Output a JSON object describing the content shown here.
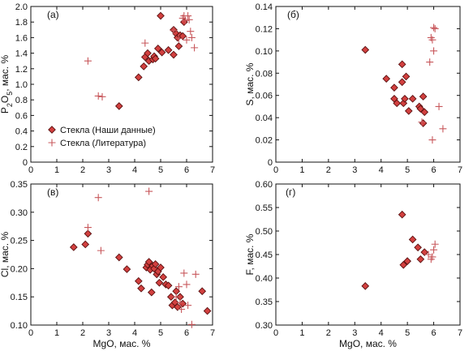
{
  "colors": {
    "diamond_fill": "#d2403f",
    "diamond_stroke": "#5a1010",
    "cross": "#c8585c",
    "axis": "#111111"
  },
  "legend": {
    "ours": "Стекла (Наши данные)",
    "literature": "Стекла (Литература)"
  },
  "chart_data": [
    {
      "type": "scatter",
      "panel_label": "(а)",
      "ylabel": "P2O5, мас. %",
      "xlabel": "",
      "xlim": [
        0,
        7
      ],
      "ylim": [
        0,
        2.0
      ],
      "xticks": [
        "0",
        "1",
        "2",
        "3",
        "4",
        "5",
        "6",
        "7"
      ],
      "yticks": [
        "0",
        "0.2",
        "0.4",
        "0.6",
        "0.8",
        "1.0",
        "1.2",
        "1.4",
        "1.6",
        "1.8",
        "2.0"
      ],
      "legend_position": "lower-left",
      "series": [
        {
          "name": "Стекла (Наши данные)",
          "marker": "diamond",
          "points": [
            [
              3.4,
              0.72
            ],
            [
              4.15,
              1.09
            ],
            [
              4.35,
              1.23
            ],
            [
              4.4,
              1.35
            ],
            [
              4.5,
              1.4
            ],
            [
              4.55,
              1.3
            ],
            [
              4.7,
              1.32
            ],
            [
              4.75,
              1.36
            ],
            [
              4.8,
              1.33
            ],
            [
              4.9,
              1.46
            ],
            [
              5.0,
              1.88
            ],
            [
              5.05,
              1.41
            ],
            [
              5.3,
              1.44
            ],
            [
              5.5,
              1.38
            ],
            [
              5.5,
              1.7
            ],
            [
              5.6,
              1.65
            ],
            [
              5.65,
              1.6
            ],
            [
              5.7,
              1.49
            ],
            [
              5.75,
              1.63
            ],
            [
              5.85,
              1.62
            ],
            [
              5.9,
              1.8
            ]
          ]
        },
        {
          "name": "Стекла (Литература)",
          "marker": "cross",
          "points": [
            [
              2.2,
              1.3
            ],
            [
              2.6,
              0.85
            ],
            [
              2.75,
              0.84
            ],
            [
              4.4,
              1.53
            ],
            [
              5.5,
              1.69
            ],
            [
              5.7,
              1.59
            ],
            [
              5.85,
              1.85
            ],
            [
              5.9,
              1.88
            ],
            [
              5.95,
              1.82
            ],
            [
              6.0,
              1.57
            ],
            [
              6.05,
              1.88
            ],
            [
              6.1,
              1.83
            ],
            [
              6.15,
              1.68
            ],
            [
              6.2,
              1.6
            ],
            [
              6.3,
              1.47
            ]
          ]
        }
      ]
    },
    {
      "type": "scatter",
      "panel_label": "(б)",
      "ylabel": "S, мас. %",
      "xlabel": "",
      "xlim": [
        0,
        7
      ],
      "ylim": [
        0,
        0.14
      ],
      "xticks": [
        "0",
        "1",
        "2",
        "3",
        "4",
        "5",
        "6",
        "7"
      ],
      "yticks": [
        "0",
        "0.02",
        "0.04",
        "0.06",
        "0.08",
        "0.10",
        "0.12",
        "0.14"
      ],
      "series": [
        {
          "name": "Стекла (Наши данные)",
          "marker": "diamond",
          "points": [
            [
              3.4,
              0.101
            ],
            [
              4.2,
              0.075
            ],
            [
              4.5,
              0.067
            ],
            [
              4.5,
              0.057
            ],
            [
              4.6,
              0.053
            ],
            [
              4.8,
              0.088
            ],
            [
              4.8,
              0.072
            ],
            [
              4.85,
              0.053
            ],
            [
              4.9,
              0.057
            ],
            [
              4.95,
              0.077
            ],
            [
              5.05,
              0.046
            ],
            [
              5.2,
              0.057
            ],
            [
              5.45,
              0.05
            ],
            [
              5.5,
              0.048
            ],
            [
              5.6,
              0.035
            ],
            [
              5.6,
              0.059
            ],
            [
              5.65,
              0.045
            ]
          ]
        },
        {
          "name": "Стекла (Литература)",
          "marker": "cross",
          "points": [
            [
              5.55,
              0.036
            ],
            [
              5.85,
              0.09
            ],
            [
              5.9,
              0.112
            ],
            [
              5.95,
              0.11
            ],
            [
              5.95,
              0.02
            ],
            [
              6.0,
              0.1
            ],
            [
              6.0,
              0.121
            ],
            [
              6.05,
              0.12
            ],
            [
              6.2,
              0.05
            ],
            [
              6.35,
              0.03
            ]
          ]
        }
      ]
    },
    {
      "type": "scatter",
      "panel_label": "(в)",
      "ylabel": "Cl, мас. %",
      "xlabel": "MgO, мас. %",
      "xlim": [
        0,
        7
      ],
      "ylim": [
        0.1,
        0.35
      ],
      "xticks": [
        "0",
        "1",
        "2",
        "3",
        "4",
        "5",
        "6",
        "7"
      ],
      "yticks": [
        "0.10",
        "0.15",
        "0.20",
        "0.25",
        "0.30",
        "0.35"
      ],
      "series": [
        {
          "name": "Стекла (Наши данные)",
          "marker": "diamond",
          "points": [
            [
              1.65,
              0.238
            ],
            [
              2.1,
              0.243
            ],
            [
              2.2,
              0.262
            ],
            [
              3.4,
              0.22
            ],
            [
              3.7,
              0.199
            ],
            [
              4.15,
              0.178
            ],
            [
              4.25,
              0.165
            ],
            [
              4.45,
              0.202
            ],
            [
              4.5,
              0.207
            ],
            [
              4.55,
              0.212
            ],
            [
              4.6,
              0.198
            ],
            [
              4.65,
              0.158
            ],
            [
              4.7,
              0.205
            ],
            [
              4.75,
              0.2
            ],
            [
              4.8,
              0.208
            ],
            [
              4.85,
              0.19
            ],
            [
              4.9,
              0.195
            ],
            [
              4.95,
              0.175
            ],
            [
              5.0,
              0.202
            ],
            [
              5.1,
              0.185
            ],
            [
              5.2,
              0.172
            ],
            [
              5.3,
              0.17
            ],
            [
              5.4,
              0.15
            ],
            [
              5.45,
              0.135
            ],
            [
              5.55,
              0.14
            ],
            [
              5.6,
              0.16
            ],
            [
              5.65,
              0.132
            ],
            [
              5.75,
              0.15
            ],
            [
              5.85,
              0.138
            ],
            [
              6.6,
              0.16
            ],
            [
              6.8,
              0.125
            ]
          ]
        },
        {
          "name": "Стекла (Литература)",
          "marker": "cross",
          "points": [
            [
              2.2,
              0.273
            ],
            [
              2.6,
              0.326
            ],
            [
              2.7,
              0.232
            ],
            [
              4.55,
              0.337
            ],
            [
              5.6,
              0.15
            ],
            [
              5.7,
              0.168
            ],
            [
              5.75,
              0.14
            ],
            [
              5.8,
              0.128
            ],
            [
              5.9,
              0.192
            ],
            [
              6.0,
              0.172
            ],
            [
              6.05,
              0.135
            ],
            [
              6.2,
              0.101
            ],
            [
              6.35,
              0.19
            ]
          ]
        }
      ]
    },
    {
      "type": "scatter",
      "panel_label": "(г)",
      "ylabel": "F, мас. %",
      "xlabel": "MgO, мас. %",
      "xlim": [
        0,
        7
      ],
      "ylim": [
        0.3,
        0.6
      ],
      "xticks": [
        "0",
        "1",
        "2",
        "3",
        "4",
        "5",
        "6",
        "7"
      ],
      "yticks": [
        "0.30",
        "0.35",
        "0.40",
        "0.45",
        "0.50",
        "0.55",
        "0.60"
      ],
      "series": [
        {
          "name": "Стекла (Наши данные)",
          "marker": "diamond",
          "points": [
            [
              3.4,
              0.383
            ],
            [
              4.8,
              0.535
            ],
            [
              4.85,
              0.428
            ],
            [
              5.0,
              0.436
            ],
            [
              5.2,
              0.482
            ],
            [
              5.4,
              0.465
            ],
            [
              5.5,
              0.44
            ],
            [
              5.65,
              0.455
            ]
          ]
        },
        {
          "name": "Стекла (Литература)",
          "marker": "cross",
          "points": [
            [
              5.8,
              0.45
            ],
            [
              5.9,
              0.44
            ],
            [
              5.95,
              0.445
            ],
            [
              6.0,
              0.46
            ],
            [
              6.05,
              0.472
            ]
          ]
        }
      ]
    }
  ]
}
